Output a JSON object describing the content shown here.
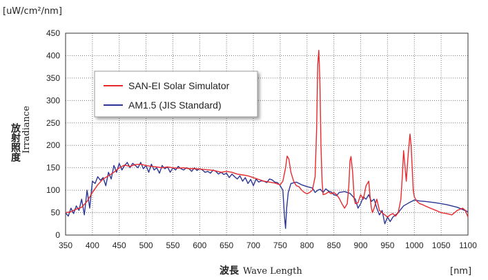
{
  "chart_data": {
    "type": "line",
    "y_unit": "[uW/cm²/nm]",
    "x_unit": "[nm]",
    "ylabel_jp": "放射照度",
    "ylabel_en": "Irradiance",
    "xlabel_jp": "波長",
    "xlabel_en": "Wave Length",
    "xlim": [
      350,
      1100
    ],
    "ylim": [
      0,
      450
    ],
    "xticks": [
      350,
      400,
      450,
      500,
      550,
      600,
      650,
      700,
      750,
      800,
      850,
      900,
      950,
      1000,
      1050,
      1100
    ],
    "yticks": [
      0,
      50,
      100,
      150,
      200,
      250,
      300,
      350,
      400,
      450
    ],
    "grid": true,
    "legend_position": "upper-left",
    "series": [
      {
        "name": "SAN-EI Solar Simulator",
        "color": "#e8282b",
        "x": [
          350,
          360,
          370,
          380,
          390,
          400,
          410,
          420,
          430,
          440,
          450,
          460,
          470,
          480,
          490,
          500,
          510,
          520,
          530,
          540,
          550,
          560,
          570,
          580,
          590,
          600,
          610,
          620,
          630,
          640,
          650,
          660,
          670,
          680,
          690,
          700,
          710,
          720,
          730,
          740,
          750,
          755,
          760,
          763,
          766,
          770,
          775,
          780,
          785,
          790,
          795,
          800,
          805,
          810,
          815,
          818,
          820,
          822,
          824,
          826,
          828,
          830,
          835,
          840,
          845,
          850,
          855,
          860,
          865,
          870,
          875,
          878,
          880,
          882,
          885,
          888,
          890,
          895,
          900,
          905,
          910,
          915,
          918,
          920,
          922,
          925,
          930,
          935,
          940,
          945,
          950,
          955,
          960,
          965,
          970,
          975,
          978,
          980,
          982,
          985,
          988,
          990,
          992,
          994,
          996,
          998,
          1000,
          1005,
          1010,
          1015,
          1020,
          1030,
          1040,
          1050,
          1060,
          1070,
          1080,
          1090,
          1095,
          1100
        ],
        "y": [
          50,
          52,
          58,
          62,
          75,
          95,
          112,
          125,
          132,
          140,
          150,
          156,
          153,
          157,
          158,
          155,
          153,
          152,
          150,
          152,
          150,
          149,
          150,
          148,
          148,
          147,
          146,
          145,
          143,
          140,
          142,
          140,
          136,
          134,
          132,
          128,
          124,
          120,
          118,
          116,
          112,
          120,
          150,
          176,
          170,
          140,
          120,
          110,
          108,
          100,
          95,
          92,
          95,
          100,
          130,
          240,
          380,
          412,
          340,
          200,
          120,
          90,
          92,
          96,
          92,
          95,
          90,
          82,
          70,
          60,
          70,
          110,
          165,
          175,
          140,
          80,
          70,
          72,
          90,
          80,
          110,
          120,
          80,
          60,
          50,
          60,
          80,
          55,
          50,
          45,
          40,
          45,
          48,
          42,
          50,
          80,
          140,
          188,
          160,
          120,
          170,
          200,
          225,
          200,
          150,
          100,
          85,
          75,
          70,
          68,
          65,
          60,
          55,
          50,
          48,
          45,
          55,
          60,
          55,
          40
        ]
      },
      {
        "name": "AM1.5 (JIS Standard)",
        "color": "#2b3594",
        "x": [
          350,
          355,
          360,
          365,
          370,
          375,
          380,
          385,
          390,
          395,
          400,
          405,
          410,
          415,
          420,
          425,
          430,
          435,
          440,
          445,
          450,
          455,
          460,
          465,
          470,
          475,
          480,
          485,
          490,
          495,
          500,
          505,
          510,
          515,
          520,
          525,
          530,
          535,
          540,
          545,
          550,
          555,
          560,
          565,
          570,
          575,
          580,
          585,
          590,
          595,
          600,
          605,
          610,
          615,
          620,
          625,
          630,
          635,
          640,
          645,
          650,
          655,
          660,
          665,
          670,
          675,
          680,
          685,
          690,
          695,
          700,
          705,
          710,
          715,
          720,
          725,
          730,
          735,
          740,
          745,
          750,
          755,
          758,
          760,
          762,
          765,
          770,
          780,
          790,
          800,
          810,
          815,
          820,
          825,
          830,
          835,
          840,
          845,
          850,
          855,
          860,
          870,
          880,
          890,
          895,
          900,
          905,
          910,
          915,
          920,
          925,
          930,
          935,
          940,
          945,
          950,
          955,
          960,
          965,
          970,
          980,
          990,
          1000,
          1010,
          1020,
          1040,
          1060,
          1080,
          1100
        ],
        "y": [
          50,
          42,
          60,
          48,
          65,
          55,
          80,
          45,
          100,
          60,
          120,
          115,
          130,
          122,
          128,
          110,
          140,
          125,
          155,
          140,
          160,
          145,
          155,
          162,
          150,
          160,
          155,
          150,
          162,
          148,
          155,
          140,
          158,
          145,
          150,
          138,
          155,
          148,
          152,
          140,
          150,
          145,
          153,
          148,
          145,
          150,
          148,
          142,
          150,
          144,
          148,
          145,
          140,
          142,
          138,
          145,
          142,
          136,
          140,
          135,
          138,
          128,
          136,
          130,
          125,
          132,
          120,
          128,
          115,
          124,
          110,
          125,
          118,
          121,
          120,
          117,
          125,
          123,
          118,
          117,
          110,
          100,
          40,
          15,
          60,
          95,
          115,
          118,
          112,
          108,
          105,
          95,
          100,
          102,
          95,
          103,
          98,
          96,
          90,
          88,
          95,
          97,
          93,
          80,
          60,
          70,
          85,
          80,
          90,
          75,
          80,
          60,
          45,
          55,
          25,
          40,
          30,
          40,
          45,
          50,
          65,
          72,
          78,
          76,
          75,
          72,
          68,
          62,
          52
        ]
      }
    ]
  }
}
